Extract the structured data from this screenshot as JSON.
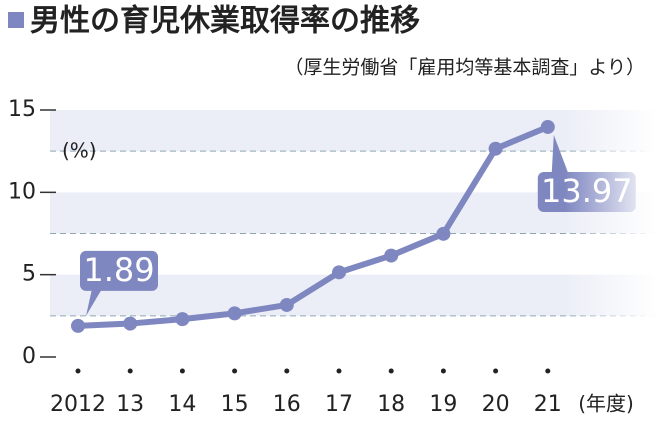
{
  "chart_data": {
    "type": "line",
    "title": "男性の育児休業取得率の推移",
    "subtitle": "（厚生労働省「雇用均等基本調査」より）",
    "y_unit": "(%)",
    "x_unit": "(年度)",
    "categories": [
      "2012",
      "13",
      "14",
      "15",
      "16",
      "17",
      "18",
      "19",
      "20",
      "21"
    ],
    "values": [
      1.89,
      2.03,
      2.3,
      2.65,
      3.16,
      5.14,
      6.16,
      7.48,
      12.65,
      13.97
    ],
    "value_labels": [
      "1.89",
      null,
      null,
      null,
      null,
      null,
      null,
      null,
      null,
      "13.97"
    ],
    "color": "#7f87c1",
    "ylim": [
      0,
      15
    ],
    "yticks": [
      0,
      5,
      10,
      15
    ],
    "minor_yticks": [
      2.5,
      7.5,
      12.5
    ],
    "grid": true
  }
}
